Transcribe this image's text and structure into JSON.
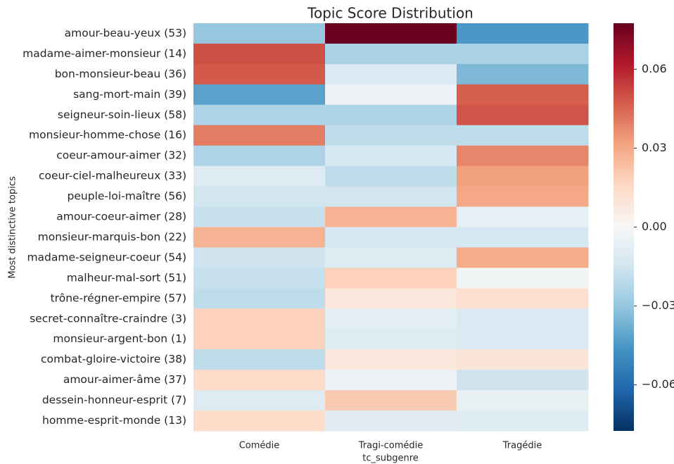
{
  "chart_data": {
    "type": "heatmap",
    "title": "Topic Score Distribution",
    "x_label": "tc_subgenre",
    "y_label": "Most distinctive topics",
    "x_categories": [
      "Comédie",
      "Tragi-comédie",
      "Tragédie"
    ],
    "y_categories": [
      "amour-beau-yeux (53)",
      "madame-aimer-monsieur (14)",
      "bon-monsieur-beau (36)",
      "sang-mort-main (39)",
      "seigneur-soin-lieux (58)",
      "monsieur-homme-chose (16)",
      "coeur-amour-aimer (32)",
      "coeur-ciel-malheureux (33)",
      "peuple-loi-maître (56)",
      "amour-coeur-aimer (28)",
      "monsieur-marquis-bon (22)",
      "madame-seigneur-coeur (54)",
      "malheur-mal-sort (51)",
      "trône-régner-empire (57)",
      "secret-connaître-craindre (3)",
      "monsieur-argent-bon (1)",
      "combat-gloire-victoire (38)",
      "amour-aimer-âme (37)",
      "dessein-honneur-esprit (7)",
      "homme-esprit-monde (13)"
    ],
    "values": [
      [
        -0.03,
        0.077,
        -0.045
      ],
      [
        0.05,
        -0.025,
        -0.025
      ],
      [
        0.048,
        -0.012,
        -0.035
      ],
      [
        -0.042,
        -0.005,
        0.047
      ],
      [
        -0.024,
        -0.024,
        0.049
      ],
      [
        0.04,
        -0.02,
        -0.02
      ],
      [
        -0.024,
        -0.014,
        0.038
      ],
      [
        -0.01,
        -0.02,
        0.032
      ],
      [
        -0.015,
        -0.015,
        0.03
      ],
      [
        -0.018,
        0.027,
        -0.007
      ],
      [
        0.027,
        -0.014,
        -0.014
      ],
      [
        -0.016,
        -0.01,
        0.029
      ],
      [
        -0.018,
        0.018,
        -0.002
      ],
      [
        -0.02,
        0.009,
        0.012
      ],
      [
        0.018,
        -0.008,
        -0.012
      ],
      [
        0.018,
        -0.01,
        -0.012
      ],
      [
        -0.02,
        0.009,
        0.01
      ],
      [
        0.015,
        -0.004,
        -0.016
      ],
      [
        -0.01,
        0.02,
        -0.006
      ],
      [
        0.015,
        -0.009,
        -0.01
      ]
    ],
    "zlim": [
      -0.0775,
      0.0775
    ],
    "zticks": [
      {
        "value": -0.06,
        "label": "−0.06"
      },
      {
        "value": -0.03,
        "label": "−0.03"
      },
      {
        "value": 0,
        "label": "0.00"
      },
      0.03,
      0.06
    ],
    "colormap": [
      "#053061",
      "#2166ac",
      "#4393c3",
      "#92c5de",
      "#d1e5f0",
      "#f7f7f7",
      "#fddbc7",
      "#f4a582",
      "#d6604d",
      "#b2182b",
      "#67001f"
    ]
  }
}
